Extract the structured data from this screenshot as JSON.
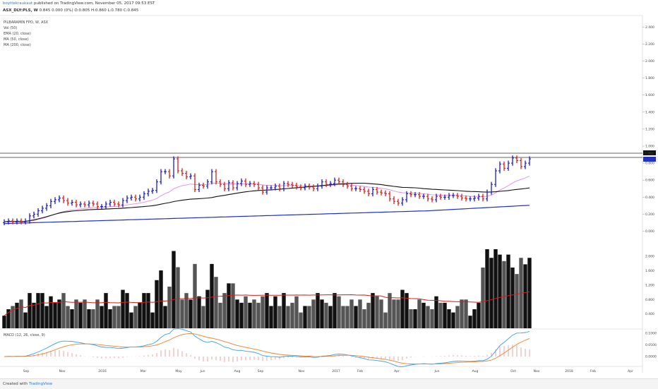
{
  "header": {
    "author": "boyttekraukaut",
    "published": "published on TradingView.com, November 05, 2017 09:53 EST",
    "symbol_line": "ASX_DLY:PLS, W",
    "ohlc": "0.845 0.000 (0%) O:0.805 H:0.860 L:0.780 C:0.845"
  },
  "footer": {
    "created_with": "Created with",
    "brand": "TradingView"
  },
  "colors": {
    "up": "#1a1ad6",
    "down": "#e01919",
    "ema20": "#e58ae0",
    "ma50": "#111111",
    "ma200": "#1f2fcf",
    "vol": "#111111",
    "vol_ma": "#d81b1b",
    "macd": "#3aa0e0",
    "signal": "#f08030",
    "hist": "#f2a0a0"
  },
  "chart_data": [
    {
      "type": "candlestick",
      "title": "PILBARAMIN FPO, W, ASX",
      "legend": [
        "Vol (50)",
        "EMA (20, close)",
        "MA (50, close)",
        "MA (200, close)"
      ],
      "y_ticks": [
        "2.400",
        "2.200",
        "2.000",
        "1.800",
        "1.600",
        "1.400",
        "1.200",
        "1.000",
        "0.800",
        "0.600",
        "0.400",
        "0.200",
        "0.000"
      ],
      "price_labels": [
        "0.862",
        "0.845"
      ],
      "x_ticks": [
        "Sep",
        "Nov",
        "2016",
        "Mar",
        "May",
        "Jun",
        "Aug",
        "Sep",
        "Nov",
        "2017",
        "Feb",
        "Apr",
        "Jun",
        "Aug",
        "Oct",
        "Nov",
        "2018",
        "Feb",
        "Apr"
      ],
      "close": [
        0.11,
        0.12,
        0.11,
        0.12,
        0.11,
        0.12,
        0.18,
        0.2,
        0.24,
        0.27,
        0.3,
        0.35,
        0.37,
        0.39,
        0.36,
        0.33,
        0.34,
        0.31,
        0.32,
        0.31,
        0.33,
        0.32,
        0.29,
        0.29,
        0.32,
        0.34,
        0.32,
        0.31,
        0.36,
        0.39,
        0.4,
        0.38,
        0.4,
        0.44,
        0.47,
        0.48,
        0.58,
        0.7,
        0.7,
        0.65,
        0.85,
        0.71,
        0.68,
        0.64,
        0.65,
        0.49,
        0.54,
        0.53,
        0.58,
        0.7,
        0.58,
        0.55,
        0.5,
        0.57,
        0.51,
        0.56,
        0.59,
        0.55,
        0.56,
        0.55,
        0.51,
        0.46,
        0.51,
        0.51,
        0.53,
        0.5,
        0.56,
        0.55,
        0.54,
        0.52,
        0.51,
        0.53,
        0.52,
        0.5,
        0.53,
        0.58,
        0.55,
        0.56,
        0.6,
        0.58,
        0.55,
        0.53,
        0.5,
        0.5,
        0.49,
        0.47,
        0.44,
        0.49,
        0.46,
        0.45,
        0.44,
        0.38,
        0.35,
        0.33,
        0.37,
        0.44,
        0.43,
        0.43,
        0.41,
        0.41,
        0.38,
        0.37,
        0.41,
        0.4,
        0.4,
        0.42,
        0.42,
        0.41,
        0.39,
        0.38,
        0.38,
        0.39,
        0.41,
        0.38,
        0.46,
        0.55,
        0.71,
        0.79,
        0.74,
        0.8,
        0.86,
        0.83,
        0.76,
        0.8,
        0.85
      ],
      "volume_axis": [
        "2.000",
        "1.600",
        "1.200",
        "0.800",
        "0.400"
      ]
    },
    {
      "type": "line",
      "title": "MACD (12, 26, close, 9)",
      "y_ticks": [
        "0.1000",
        "0.0500",
        "0.0000"
      ]
    }
  ]
}
